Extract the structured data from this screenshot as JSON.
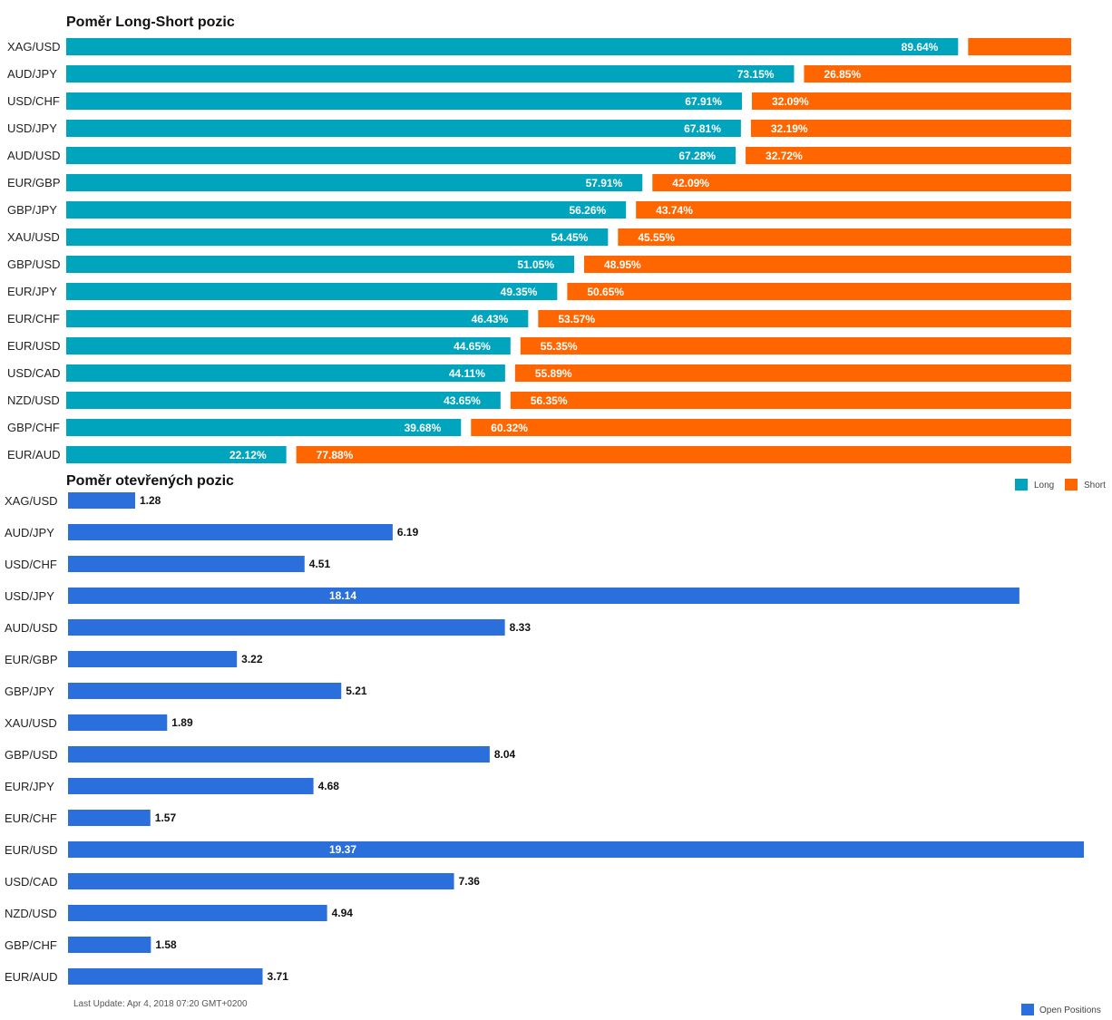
{
  "colors": {
    "long": "#00a5bd",
    "short": "#ff6600",
    "open": "#2a6fdb"
  },
  "footer": {
    "last_update": "Last Update: Apr 4, 2018 07:20 GMT+0200"
  },
  "chart_data": [
    {
      "type": "bar",
      "orientation": "horizontal",
      "stacked": true,
      "title": "Poměr Long-Short pozic",
      "categories": [
        "XAG/USD",
        "AUD/JPY",
        "USD/CHF",
        "USD/JPY",
        "AUD/USD",
        "EUR/GBP",
        "GBP/JPY",
        "XAU/USD",
        "GBP/USD",
        "EUR/JPY",
        "EUR/CHF",
        "EUR/USD",
        "USD/CAD",
        "NZD/USD",
        "GBP/CHF",
        "EUR/AUD"
      ],
      "series": [
        {
          "name": "Long",
          "color": "#00a5bd",
          "values": [
            89.64,
            73.15,
            67.91,
            67.81,
            67.28,
            57.91,
            56.26,
            54.45,
            51.05,
            49.35,
            46.43,
            44.65,
            44.11,
            43.65,
            39.68,
            22.12
          ],
          "labels": [
            "89.64%",
            "73.15%",
            "67.91%",
            "67.81%",
            "67.28%",
            "57.91%",
            "56.26%",
            "54.45%",
            "51.05%",
            "49.35%",
            "46.43%",
            "44.65%",
            "44.11%",
            "43.65%",
            "39.68%",
            "22.12%"
          ]
        },
        {
          "name": "Short",
          "color": "#ff6600",
          "values": [
            10.36,
            26.85,
            32.09,
            32.19,
            32.72,
            42.09,
            43.74,
            45.55,
            48.95,
            50.65,
            53.57,
            55.35,
            55.89,
            56.35,
            60.32,
            77.88
          ],
          "labels": [
            "",
            "26.85%",
            "32.09%",
            "32.19%",
            "32.72%",
            "42.09%",
            "43.74%",
            "45.55%",
            "48.95%",
            "50.65%",
            "53.57%",
            "55.35%",
            "55.89%",
            "56.35%",
            "60.32%",
            "77.88%"
          ]
        }
      ],
      "legend": "bottom-right"
    },
    {
      "type": "bar",
      "orientation": "horizontal",
      "title": "Poměr otevřených pozic",
      "categories": [
        "XAG/USD",
        "AUD/JPY",
        "USD/CHF",
        "USD/JPY",
        "AUD/USD",
        "EUR/GBP",
        "GBP/JPY",
        "XAU/USD",
        "GBP/USD",
        "EUR/JPY",
        "EUR/CHF",
        "EUR/USD",
        "USD/CAD",
        "NZD/USD",
        "GBP/CHF",
        "EUR/AUD"
      ],
      "series": [
        {
          "name": "Open Positions",
          "color": "#2a6fdb",
          "values": [
            1.28,
            6.19,
            4.51,
            18.14,
            8.33,
            3.22,
            5.21,
            1.89,
            8.04,
            4.68,
            1.57,
            19.37,
            7.36,
            4.94,
            1.58,
            3.71
          ],
          "labels": [
            "1.28",
            "6.19",
            "4.51",
            "18.14",
            "8.33",
            "3.22",
            "5.21",
            "1.89",
            "8.04",
            "4.68",
            "1.57",
            "19.37",
            "7.36",
            "4.94",
            "1.58",
            "3.71"
          ]
        }
      ],
      "xlim": [
        0,
        19.37
      ],
      "legend": "bottom-right"
    }
  ]
}
